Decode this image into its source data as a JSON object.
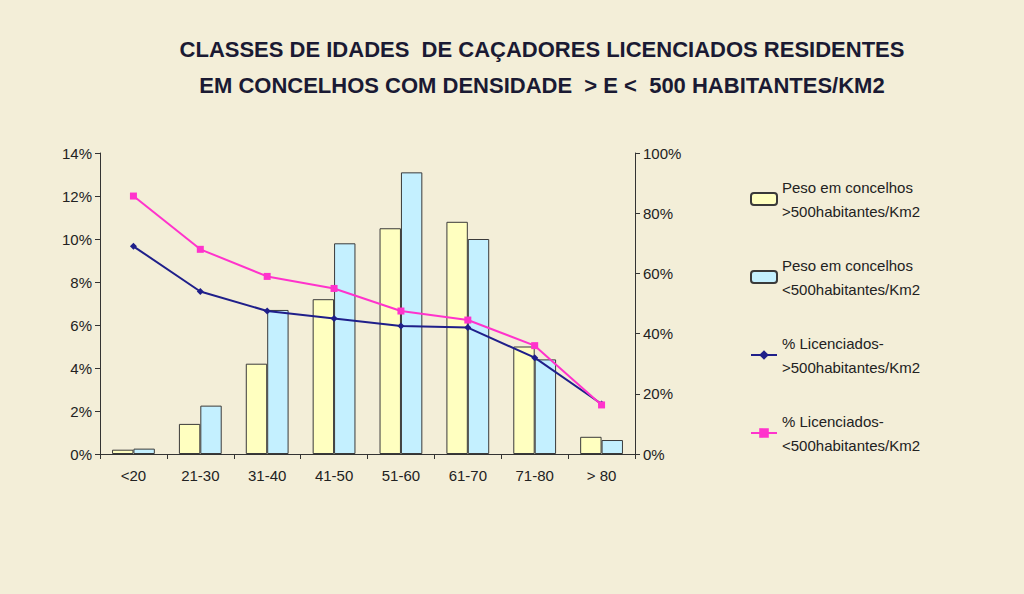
{
  "chart_data": {
    "type": "bar",
    "title": "CLASSES DE IDADES  DE CAÇADORES LICENCIADOS RESIDENTES\nEM CONCELHOS COM DENSIDADE  > E <  500 HABITANTES/KM2",
    "categories": [
      "<20",
      "21-30",
      "31-40",
      "41-50",
      "51-60",
      "61-70",
      "71-80",
      "> 80"
    ],
    "series": [
      {
        "name": "Peso em concelhos\n>500habitantes/Km2",
        "type": "bar",
        "color": "#ffffc0",
        "values": [
          0.2,
          1.4,
          4.2,
          7.2,
          10.5,
          10.8,
          5.0,
          0.8
        ]
      },
      {
        "name": "Peso em concelhos\n<500habitantes/Km2",
        "type": "bar",
        "color": "#c4f0ff",
        "values": [
          0.25,
          2.25,
          6.7,
          9.8,
          13.1,
          10.0,
          4.4,
          0.65
        ]
      },
      {
        "name": "% Licenciados-\n>500habitantes/Km2",
        "type": "line",
        "axis": "y2",
        "color": "#1f1f8a",
        "marker": "diamond",
        "values": [
          69,
          54,
          47.5,
          45,
          42.5,
          42,
          32,
          16.6
        ]
      },
      {
        "name": "% Licenciados-\n<500habitantes/Km2",
        "type": "line",
        "axis": "y2",
        "color": "#ff33cc",
        "marker": "square",
        "values": [
          85.7,
          68,
          59,
          55,
          47.5,
          44.5,
          36,
          16.3
        ]
      }
    ],
    "ylim": [
      0,
      14
    ],
    "yticks": [
      {
        "value": 0,
        "label": "0%"
      },
      {
        "value": 2,
        "label": "2%"
      },
      {
        "value": 4,
        "label": "4%"
      },
      {
        "value": 6,
        "label": "6%"
      },
      {
        "value": 8,
        "label": "8%"
      },
      {
        "value": 10,
        "label": "10%"
      },
      {
        "value": 12,
        "label": "12%"
      },
      {
        "value": 14,
        "label": "14%"
      }
    ],
    "y2lim": [
      0,
      100
    ],
    "y2ticks": [
      {
        "value": 0,
        "label": "0%"
      },
      {
        "value": 20,
        "label": "20%"
      },
      {
        "value": 40,
        "label": "40%"
      },
      {
        "value": 60,
        "label": "60%"
      },
      {
        "value": 80,
        "label": "80%"
      },
      {
        "value": 100,
        "label": "100%"
      }
    ],
    "grid": false,
    "legend": "right"
  }
}
